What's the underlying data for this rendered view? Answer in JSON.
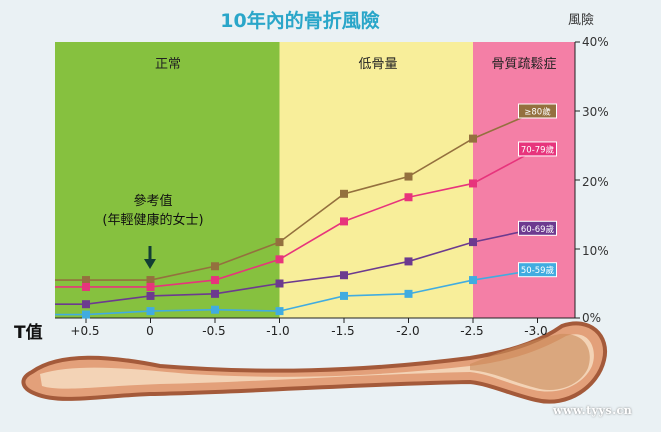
{
  "header": {
    "title": "10年內的骨折風險",
    "risk_axis_label": "風險",
    "t_label": "T值"
  },
  "bands": [
    {
      "label": "正常",
      "color": "#86c13f",
      "from": 0.5,
      "to": -1.0
    },
    {
      "label": "低骨量",
      "color": "#f8ee9a",
      "from": -1.0,
      "to": -2.5
    },
    {
      "label": "骨質疏鬆症",
      "color": "#f47fa6",
      "from": -2.5,
      "to": -3.4
    }
  ],
  "annotation": {
    "line1": "參考值",
    "line2": "(年輕健康的女士)"
  },
  "watermark": "www.tyys.cn",
  "chart_data": {
    "type": "line",
    "title": "10年內的骨折風險",
    "xlabel": "T值",
    "ylabel": "風險",
    "x_ticks": [
      "+0.5",
      "0",
      "-0.5",
      "-1.0",
      "-1.5",
      "-2.0",
      "-2.5",
      "-3.0"
    ],
    "y_ticks": [
      "40%",
      "30%",
      "20%",
      "10%",
      "0%"
    ],
    "xlim": [
      0.5,
      -3.0
    ],
    "ylim": [
      0,
      40
    ],
    "grid": false,
    "series": [
      {
        "name": "≥80歲",
        "color": "#94703e",
        "x": [
          0.5,
          0,
          -0.5,
          -1.0,
          -1.5,
          -2.0,
          -2.5,
          -3.0
        ],
        "values": [
          5.5,
          5.5,
          7.5,
          11,
          18,
          20.5,
          26,
          30
        ]
      },
      {
        "name": "70-79歲",
        "color": "#e7347c",
        "x": [
          0.5,
          0,
          -0.5,
          -1.0,
          -1.5,
          -2.0,
          -2.5,
          -3.0
        ],
        "values": [
          4.5,
          4.5,
          5.5,
          8.5,
          14,
          17.5,
          19.5,
          24.5
        ]
      },
      {
        "name": "60-69歲",
        "color": "#6c3a8f",
        "x": [
          0.5,
          0,
          -0.5,
          -1.0,
          -1.5,
          -2.0,
          -2.5,
          -3.0
        ],
        "values": [
          2,
          3.2,
          3.5,
          5,
          6.2,
          8.2,
          11,
          13
        ]
      },
      {
        "name": "50-59歲",
        "color": "#41ace0",
        "x": [
          0.5,
          0,
          -0.5,
          -1.0,
          -1.5,
          -2.0,
          -2.5,
          -3.0
        ],
        "values": [
          0.5,
          1,
          1.2,
          1,
          3.2,
          3.5,
          5.5,
          7
        ]
      }
    ]
  }
}
